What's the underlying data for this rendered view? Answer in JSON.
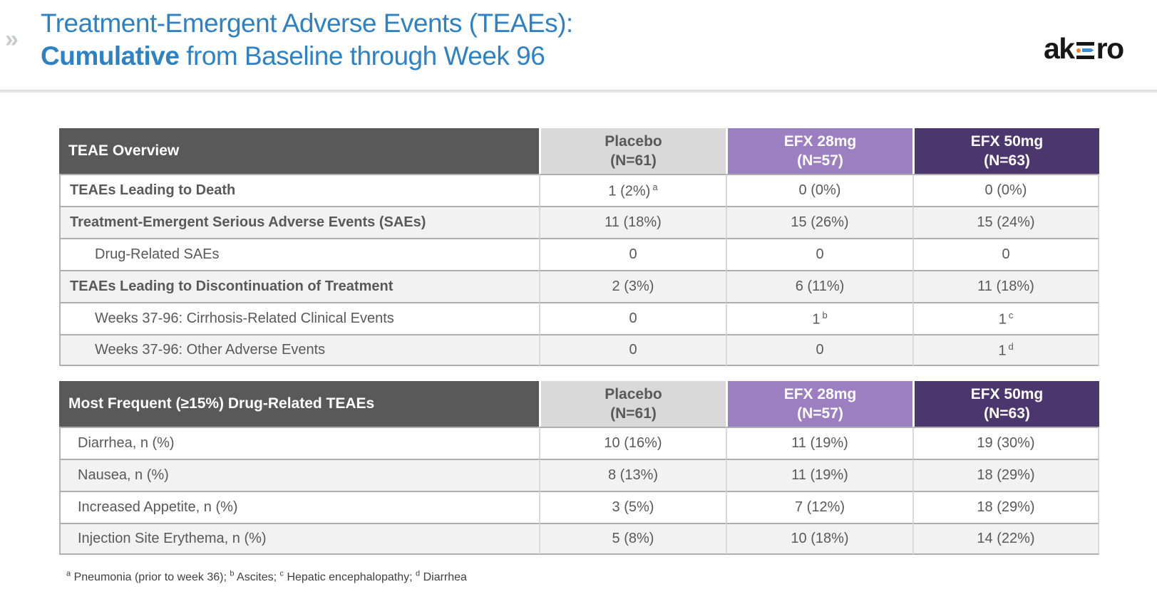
{
  "header": {
    "chevron": "»",
    "title_line1": "Treatment-Emergent Adverse Events (TEAEs):",
    "title_line2_bold": "Cumulative",
    "title_line2_rest": " from Baseline through Week 96",
    "logo_ak": "ak",
    "logo_ro": "ro"
  },
  "colors": {
    "title_blue": "#2e82c4",
    "table_header_dark_gray": "#595959",
    "placebo_gray": "#d9d9d9",
    "efx28_purple": "#9b7fc0",
    "efx50_purple": "#4c366e",
    "row_alt_gray": "#f2f2f2",
    "logo_orange": "#ef7d22",
    "logo_blue": "#3a8fd8"
  },
  "tables": [
    {
      "name": "teae-overview-table",
      "title": "TEAE Overview",
      "columns": [
        {
          "line1": "Placebo",
          "line2": "(N=61)",
          "bg": "#d9d9d9",
          "fg": "#595959"
        },
        {
          "line1": "EFX 28mg",
          "line2": "(N=57)",
          "bg": "#9b7fc0",
          "fg": "#ffffff"
        },
        {
          "line1": "EFX 50mg",
          "line2": "(N=63)",
          "bg": "#4c366e",
          "fg": "#ffffff"
        }
      ],
      "rows": [
        {
          "label": "TEAEs Leading to Death",
          "style": "bold",
          "values": [
            {
              "t": "1 (2%)",
              "sup": "a"
            },
            {
              "t": "0 (0%)"
            },
            {
              "t": "0 (0%)"
            }
          ]
        },
        {
          "label": "Treatment-Emergent Serious Adverse Events (SAEs)",
          "style": "bold",
          "values": [
            {
              "t": "11 (18%)"
            },
            {
              "t": "15 (26%)"
            },
            {
              "t": "15 (24%)"
            }
          ]
        },
        {
          "label": "Drug-Related SAEs",
          "style": "indent",
          "values": [
            {
              "t": "0"
            },
            {
              "t": "0"
            },
            {
              "t": "0"
            }
          ]
        },
        {
          "label": "TEAEs Leading to Discontinuation of Treatment",
          "style": "bold",
          "values": [
            {
              "t": "2 (3%)"
            },
            {
              "t": "6 (11%)"
            },
            {
              "t": "11 (18%)"
            }
          ]
        },
        {
          "label": "Weeks 37-96: Cirrhosis-Related Clinical Events",
          "style": "indent",
          "values": [
            {
              "t": "0"
            },
            {
              "t": "1",
              "sup": "b"
            },
            {
              "t": "1",
              "sup": "c"
            }
          ]
        },
        {
          "label": "Weeks 37-96: Other Adverse Events",
          "style": "indent",
          "values": [
            {
              "t": "0"
            },
            {
              "t": "0"
            },
            {
              "t": "1",
              "sup": "d"
            }
          ]
        }
      ]
    },
    {
      "name": "drug-related-teae-table",
      "title": "Most Frequent (≥15%) Drug-Related TEAEs",
      "columns": [
        {
          "line1": "Placebo",
          "line2": "(N=61)",
          "bg": "#d9d9d9",
          "fg": "#595959"
        },
        {
          "line1": "EFX 28mg",
          "line2": "(N=57)",
          "bg": "#9b7fc0",
          "fg": "#ffffff"
        },
        {
          "line1": "EFX 50mg",
          "line2": "(N=63)",
          "bg": "#4c366e",
          "fg": "#ffffff"
        }
      ],
      "rows": [
        {
          "label": "Diarrhea, n (%)",
          "style": "plain",
          "values": [
            {
              "t": "10 (16%)"
            },
            {
              "t": "11 (19%)"
            },
            {
              "t": "19 (30%)"
            }
          ]
        },
        {
          "label": "Nausea, n (%)",
          "style": "plain",
          "values": [
            {
              "t": "8 (13%)"
            },
            {
              "t": "11 (19%)"
            },
            {
              "t": "18 (29%)"
            }
          ]
        },
        {
          "label": "Increased Appetite, n (%)",
          "style": "plain",
          "values": [
            {
              "t": "3 (5%)"
            },
            {
              "t": "7 (12%)"
            },
            {
              "t": "18 (29%)"
            }
          ]
        },
        {
          "label": "Injection Site Erythema, n (%)",
          "style": "plain",
          "values": [
            {
              "t": "5 (8%)"
            },
            {
              "t": "10 (18%)"
            },
            {
              "t": "14 (22%)"
            }
          ]
        }
      ]
    }
  ],
  "footnote": {
    "items": [
      {
        "sup": "a",
        "text": "Pneumonia (prior to week 36); "
      },
      {
        "sup": "b",
        "text": "Ascites;"
      },
      {
        "sup": "c",
        "text": "Hepatic encephalopathy;"
      },
      {
        "sup": "d",
        "text": "Diarrhea"
      }
    ]
  }
}
